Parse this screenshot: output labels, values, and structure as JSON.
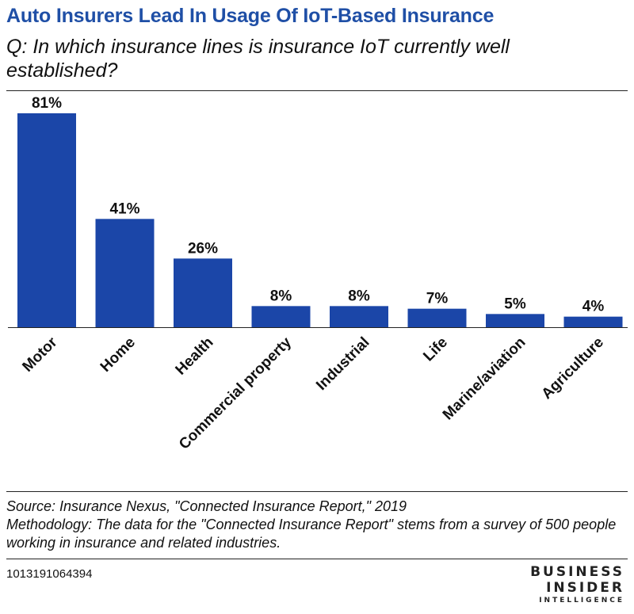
{
  "chart_data": {
    "type": "bar",
    "title": "Auto Insurers Lead In Usage Of IoT-Based Insurance",
    "subtitle": "Q: In which insurance lines is insurance IoT currently well established?",
    "categories": [
      "Motor",
      "Home",
      "Health",
      "Commercial property",
      "Industrial",
      "Life",
      "Marine/aviation",
      "Agriculture"
    ],
    "values": [
      81,
      41,
      26,
      8,
      8,
      7,
      5,
      4
    ],
    "value_labels": [
      "81%",
      "41%",
      "26%",
      "8%",
      "8%",
      "7%",
      "5%",
      "4%"
    ],
    "xlabel": "",
    "ylabel": "",
    "ylim": [
      0,
      81
    ],
    "grid": false,
    "bar_color": "#1b46a8"
  },
  "footer": {
    "source": "Source: Insurance Nexus, \"Connected Insurance Report,\" 2019",
    "methodology": "Methodology: The data for the \"Connected Insurance Report\" stems from a survey of 500 people working in insurance and related industries.",
    "chart_id": "1013191064394"
  },
  "logo": {
    "line1": "BUSINESS",
    "line2": "INSIDER",
    "line3": "INTELLIGENCE"
  }
}
